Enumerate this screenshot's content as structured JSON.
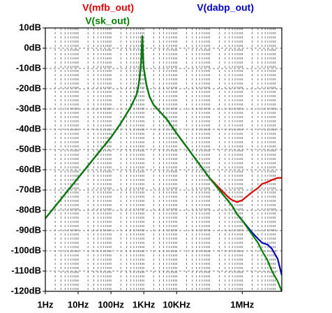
{
  "chart_data": {
    "type": "line",
    "xscale": "log",
    "grid": true,
    "x": [
      1,
      10,
      100,
      200,
      400,
      600,
      700,
      800,
      850,
      900,
      950,
      1000,
      1200,
      1500,
      2000,
      5000,
      10000,
      100000,
      200000,
      400000,
      500000,
      700000,
      1000000,
      2000000,
      3000000,
      4000000,
      6000000,
      8000000,
      12000000,
      16000000
    ],
    "series": [
      {
        "name": "V(mfb_out)",
        "color": "#e00000",
        "values": [
          -84,
          -64,
          -44,
          -37,
          -29,
          -23,
          -18,
          -10,
          -3,
          6,
          -4,
          -10,
          -18,
          -24,
          -28,
          -35,
          -42,
          -64,
          -69,
          -74,
          -75,
          -76,
          -75,
          -71,
          -69,
          -67,
          -66,
          -65,
          -64,
          -64
        ]
      },
      {
        "name": "V(dabp_out)",
        "color": "#0000c0",
        "values": [
          -84,
          -64,
          -44,
          -37,
          -29,
          -23,
          -18,
          -10,
          -3,
          6,
          -4,
          -10,
          -18,
          -24,
          -28,
          -35,
          -42,
          -64,
          -70,
          -76,
          -78,
          -82,
          -85,
          -91,
          -94,
          -96,
          -97,
          -99,
          -104,
          -112
        ]
      },
      {
        "name": "V(sk_out)",
        "color": "#008000",
        "values": [
          -84,
          -64,
          -44,
          -37,
          -29,
          -23,
          -18,
          -10,
          -3,
          6,
          -4,
          -10,
          -18,
          -24,
          -28,
          -35,
          -42,
          -64,
          -70,
          -76,
          -78,
          -82,
          -85,
          -92,
          -96,
          -100,
          -105,
          -110,
          -115,
          -120
        ]
      }
    ],
    "xlim": [
      1,
      16000000
    ],
    "xticks": [
      {
        "value": 1,
        "label": "1Hz"
      },
      {
        "value": 10,
        "label": "10Hz"
      },
      {
        "value": 100,
        "label": "100Hz"
      },
      {
        "value": 1000,
        "label": "1KHz"
      },
      {
        "value": 10000,
        "label": "10KHz"
      },
      {
        "value": 1000000,
        "label": "1MHz"
      }
    ],
    "ylim": [
      -120,
      10
    ],
    "yticks": [
      {
        "value": 10,
        "label": "10dB"
      },
      {
        "value": 0,
        "label": "0dB"
      },
      {
        "value": -10,
        "label": "-10dB"
      },
      {
        "value": -20,
        "label": "-20dB"
      },
      {
        "value": -30,
        "label": "-30dB"
      },
      {
        "value": -40,
        "label": "-40dB"
      },
      {
        "value": -50,
        "label": "-50dB"
      },
      {
        "value": -60,
        "label": "-60dB"
      },
      {
        "value": -70,
        "label": "-70dB"
      },
      {
        "value": -80,
        "label": "-80dB"
      },
      {
        "value": -90,
        "label": "-90dB"
      },
      {
        "value": -100,
        "label": "-100dB"
      },
      {
        "value": -110,
        "label": "-110dB"
      },
      {
        "value": -120,
        "label": "-120dB"
      }
    ]
  }
}
